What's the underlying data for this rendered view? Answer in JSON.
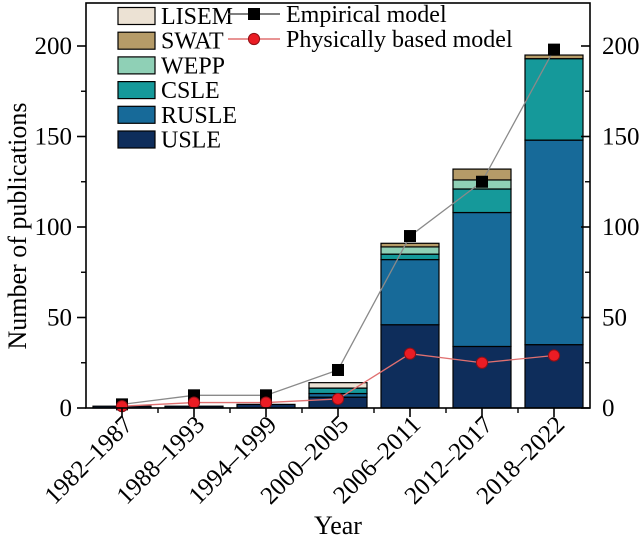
{
  "figure": {
    "background": "#ffffff",
    "frame_color": "#000000"
  },
  "chart_data": {
    "type": "stacked-bar + line overlay",
    "title": "",
    "xlabel": "Year",
    "ylabel": "Number of publications",
    "categories": [
      "1982–1987",
      "1988–1993",
      "1994–1999",
      "2000–2005",
      "2006–2011",
      "2012–2017",
      "2018–2022"
    ],
    "bar_series_bottom_to_top": [
      {
        "name": "USLE",
        "color": "#0e2d5b",
        "values": [
          1,
          1,
          2,
          6,
          46,
          34,
          35
        ]
      },
      {
        "name": "RUSLE",
        "color": "#176a99",
        "values": [
          0,
          0,
          0,
          2,
          36,
          74,
          113
        ]
      },
      {
        "name": "CSLE",
        "color": "#15999a",
        "values": [
          0,
          0,
          0,
          3,
          3,
          13,
          45
        ]
      },
      {
        "name": "WEPP",
        "color": "#8fd0b6",
        "values": [
          0,
          0,
          0,
          0,
          4,
          5,
          0
        ]
      },
      {
        "name": "SWAT",
        "color": "#b59b68",
        "values": [
          0,
          0,
          0,
          0,
          2,
          6,
          2
        ]
      },
      {
        "name": "LISEM",
        "color": "#ece2d4",
        "values": [
          0,
          0,
          0,
          3,
          0,
          0,
          0
        ]
      }
    ],
    "bar_totals": [
      1,
      1,
      2,
      14,
      91,
      132,
      195
    ],
    "line_series": [
      {
        "name": "Empirical model",
        "marker": "square",
        "marker_color": "#000000",
        "marker_edge": "#000000",
        "line_color": "#8a8a8a",
        "values": [
          2,
          7,
          7,
          21,
          95,
          125,
          198
        ]
      },
      {
        "name": "Physically based model",
        "marker": "circle",
        "marker_color": "#ea1c24",
        "marker_edge": "#8f1016",
        "line_color": "#e07070",
        "values": [
          1,
          3,
          3,
          5,
          30,
          25,
          29
        ]
      }
    ],
    "y_axis": {
      "min": 0,
      "max": 200,
      "major_ticks": [
        0,
        50,
        100,
        150,
        200
      ],
      "minor_ticks": [
        25,
        75,
        125,
        175
      ],
      "mirrored_right_axis": true
    },
    "x_axis": {
      "tick_label_rotation_deg": -45,
      "minor_ticks_between_categories": true
    },
    "legend": {
      "bar_items_top_to_bottom": [
        "LISEM",
        "SWAT",
        "WEPP",
        "CSLE",
        "RUSLE",
        "USLE"
      ],
      "line_items": [
        "Empirical model",
        "Physically based model"
      ],
      "position": "top-left inside plot"
    },
    "grid": false
  }
}
